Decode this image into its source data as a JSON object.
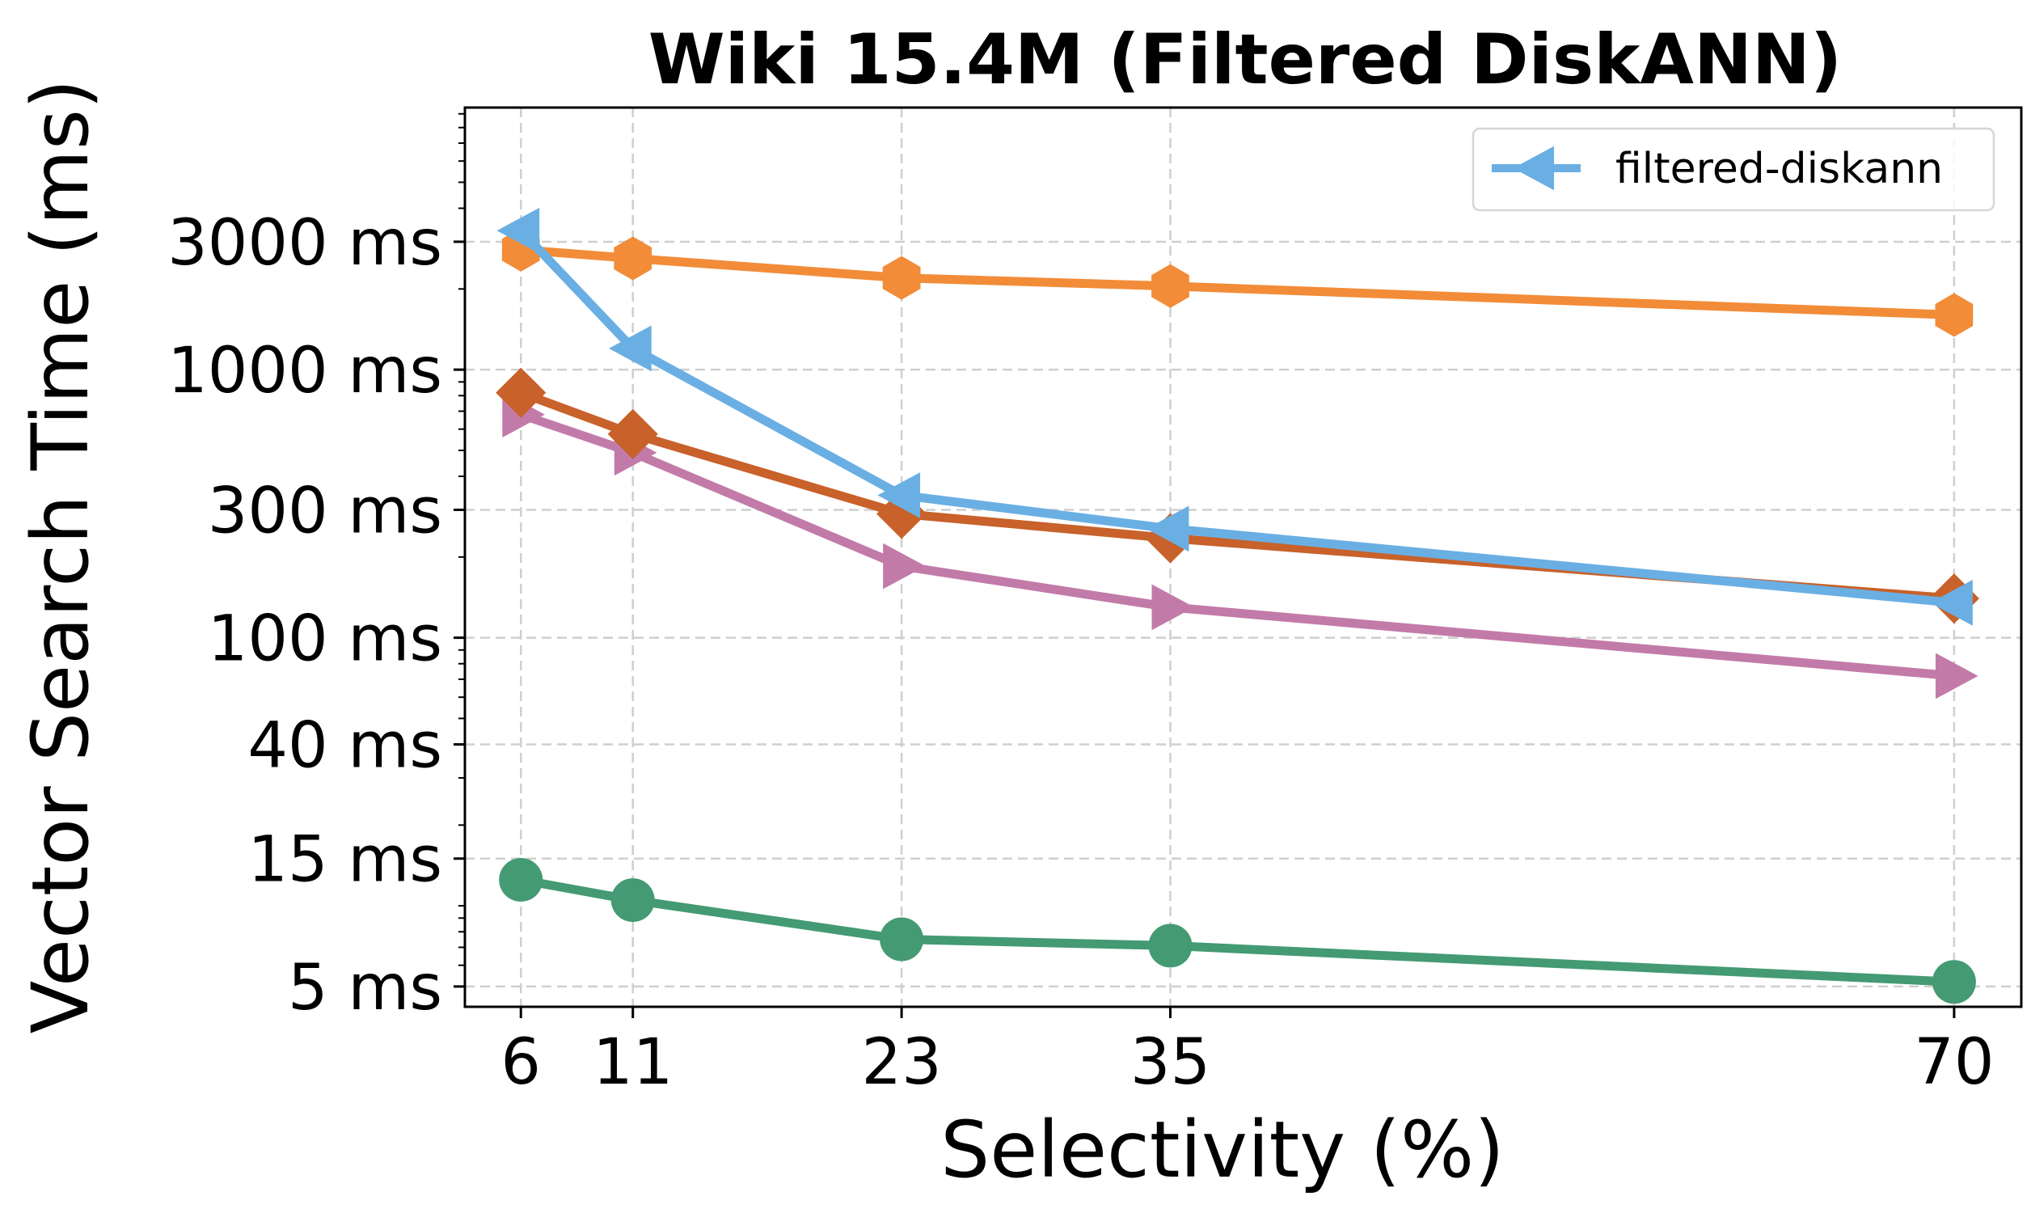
{
  "chart_data": {
    "type": "line",
    "title": "Wiki 15.4M (Filtered DiskANN)",
    "xlabel": "Selectivity (%)",
    "ylabel": "Vector Search Time (ms)",
    "y_scale": "log",
    "grid": true,
    "legend_placement": "top-right",
    "x": [
      6,
      11,
      23,
      35,
      70
    ],
    "xlim": [
      3.5,
      73
    ],
    "ylim": [
      4.2,
      9500
    ],
    "x_ticks": [
      {
        "value": 6,
        "label": "6"
      },
      {
        "value": 11,
        "label": "11"
      },
      {
        "value": 23,
        "label": "23"
      },
      {
        "value": 35,
        "label": "35"
      },
      {
        "value": 70,
        "label": "70"
      }
    ],
    "y_ticks": [
      {
        "value": 5,
        "label": "5 ms"
      },
      {
        "value": 15,
        "label": "15 ms"
      },
      {
        "value": 40,
        "label": "40 ms"
      },
      {
        "value": 100,
        "label": "100 ms"
      },
      {
        "value": 300,
        "label": "300 ms"
      },
      {
        "value": 1000,
        "label": "1000 ms"
      },
      {
        "value": 3000,
        "label": "3000 ms"
      }
    ],
    "series": [
      {
        "name": "filtered-diskann",
        "marker": "triangle-left",
        "color": "#6aafe3",
        "values": [
          3300,
          1200,
          340,
          255,
          135
        ],
        "in_legend": true
      },
      {
        "name": "",
        "marker": "hexagon",
        "color": "#f28c38",
        "values": [
          2800,
          2600,
          2200,
          2050,
          1600
        ],
        "in_legend": false
      },
      {
        "name": "",
        "marker": "diamond",
        "color": "#c8612a",
        "values": [
          820,
          575,
          290,
          235,
          140
        ],
        "in_legend": false
      },
      {
        "name": "",
        "marker": "triangle-right",
        "color": "#c27ba9",
        "values": [
          680,
          490,
          185,
          130,
          72
        ],
        "in_legend": false
      },
      {
        "name": "",
        "marker": "circle",
        "color": "#449a73",
        "values": [
          12.5,
          10.5,
          7.5,
          7.1,
          5.2
        ],
        "in_legend": false
      }
    ]
  }
}
